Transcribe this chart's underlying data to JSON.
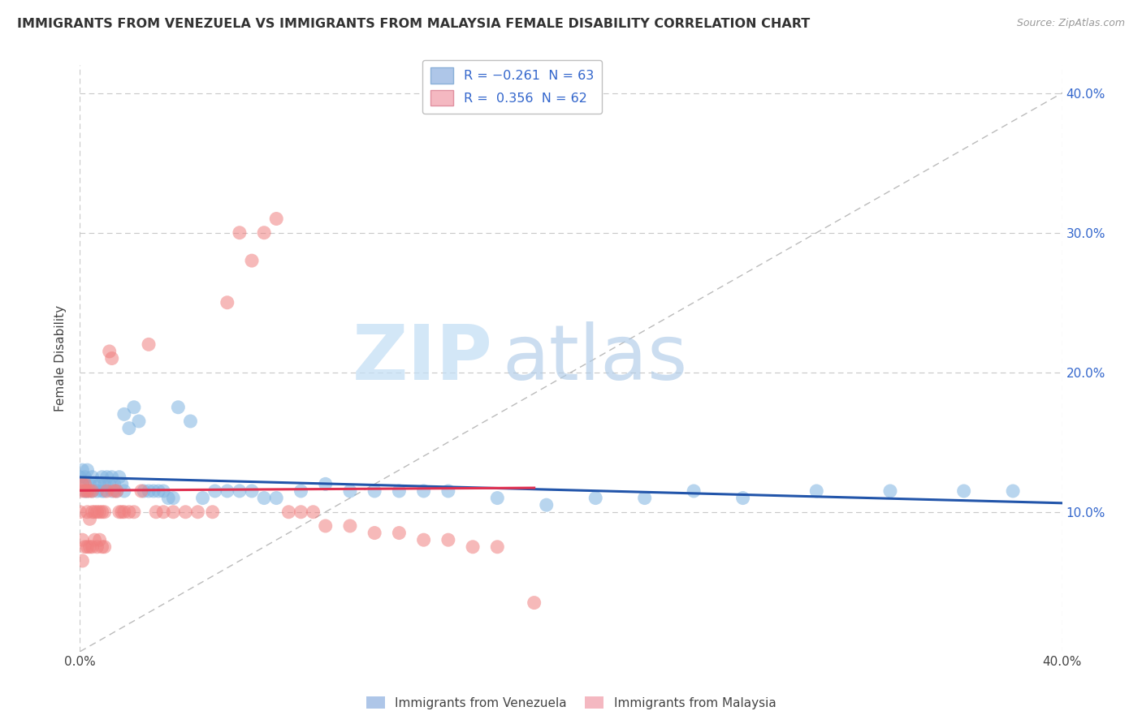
{
  "title": "IMMIGRANTS FROM VENEZUELA VS IMMIGRANTS FROM MALAYSIA FEMALE DISABILITY CORRELATION CHART",
  "source": "Source: ZipAtlas.com",
  "ylabel": "Female Disability",
  "x_lim": [
    0.0,
    0.4
  ],
  "y_lim": [
    0.0,
    0.42
  ],
  "watermark_zip": "ZIP",
  "watermark_atlas": "atlas",
  "grid_color": "#c8c8c8",
  "background_color": "#ffffff",
  "series_venezuela": {
    "color": "#7fb3e0",
    "trend_color": "#2255aa",
    "x": [
      0.0,
      0.001,
      0.001,
      0.002,
      0.002,
      0.003,
      0.003,
      0.004,
      0.005,
      0.005,
      0.006,
      0.007,
      0.008,
      0.009,
      0.009,
      0.01,
      0.01,
      0.011,
      0.012,
      0.013,
      0.013,
      0.014,
      0.015,
      0.016,
      0.017,
      0.018,
      0.018,
      0.02,
      0.022,
      0.024,
      0.026,
      0.028,
      0.03,
      0.032,
      0.034,
      0.036,
      0.038,
      0.04,
      0.045,
      0.05,
      0.055,
      0.06,
      0.065,
      0.07,
      0.075,
      0.08,
      0.09,
      0.1,
      0.11,
      0.12,
      0.13,
      0.14,
      0.15,
      0.17,
      0.19,
      0.21,
      0.23,
      0.25,
      0.27,
      0.3,
      0.33,
      0.36,
      0.38
    ],
    "y": [
      0.125,
      0.12,
      0.13,
      0.115,
      0.125,
      0.115,
      0.13,
      0.12,
      0.115,
      0.125,
      0.12,
      0.115,
      0.12,
      0.115,
      0.125,
      0.12,
      0.115,
      0.125,
      0.12,
      0.115,
      0.125,
      0.12,
      0.115,
      0.125,
      0.12,
      0.115,
      0.17,
      0.16,
      0.175,
      0.165,
      0.115,
      0.115,
      0.115,
      0.115,
      0.115,
      0.11,
      0.11,
      0.175,
      0.165,
      0.11,
      0.115,
      0.115,
      0.115,
      0.115,
      0.11,
      0.11,
      0.115,
      0.12,
      0.115,
      0.115,
      0.115,
      0.115,
      0.115,
      0.11,
      0.105,
      0.11,
      0.11,
      0.115,
      0.11,
      0.115,
      0.115,
      0.115,
      0.115
    ]
  },
  "series_malaysia": {
    "color": "#f08080",
    "trend_color": "#e03050",
    "x": [
      0.0,
      0.0005,
      0.001,
      0.001,
      0.001,
      0.002,
      0.002,
      0.002,
      0.003,
      0.003,
      0.003,
      0.004,
      0.004,
      0.004,
      0.005,
      0.005,
      0.005,
      0.006,
      0.006,
      0.007,
      0.007,
      0.008,
      0.008,
      0.009,
      0.009,
      0.01,
      0.01,
      0.011,
      0.012,
      0.013,
      0.014,
      0.015,
      0.016,
      0.017,
      0.018,
      0.02,
      0.022,
      0.025,
      0.028,
      0.031,
      0.034,
      0.038,
      0.043,
      0.048,
      0.054,
      0.06,
      0.065,
      0.07,
      0.075,
      0.08,
      0.085,
      0.09,
      0.095,
      0.1,
      0.11,
      0.12,
      0.13,
      0.14,
      0.15,
      0.16,
      0.17,
      0.185
    ],
    "y": [
      0.1,
      0.115,
      0.08,
      0.12,
      0.065,
      0.12,
      0.075,
      0.115,
      0.1,
      0.115,
      0.075,
      0.095,
      0.115,
      0.075,
      0.115,
      0.1,
      0.075,
      0.1,
      0.08,
      0.1,
      0.075,
      0.1,
      0.08,
      0.1,
      0.075,
      0.1,
      0.075,
      0.115,
      0.215,
      0.21,
      0.115,
      0.115,
      0.1,
      0.1,
      0.1,
      0.1,
      0.1,
      0.115,
      0.22,
      0.1,
      0.1,
      0.1,
      0.1,
      0.1,
      0.1,
      0.25,
      0.3,
      0.28,
      0.3,
      0.31,
      0.1,
      0.1,
      0.1,
      0.09,
      0.09,
      0.085,
      0.085,
      0.08,
      0.08,
      0.075,
      0.075,
      0.035
    ]
  }
}
